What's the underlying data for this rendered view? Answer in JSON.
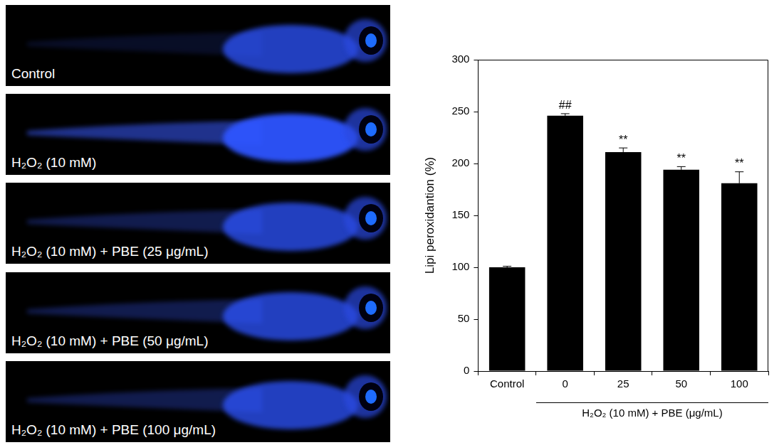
{
  "chart_data": {
    "type": "bar",
    "categories": [
      "Control",
      "0",
      "25",
      "50",
      "100"
    ],
    "values": [
      100,
      246,
      211,
      194,
      181
    ],
    "errors": [
      1,
      2,
      4,
      3,
      11
    ],
    "significance": [
      null,
      "##",
      "**",
      "**",
      "**"
    ],
    "color": "#000000",
    "y_label": "Lipi peroxidantion (%)",
    "x_group_label": "H₂O₂ (10 mM) + PBE (μg/mL)",
    "x_group_categories": [
      "0",
      "100"
    ],
    "ylim": [
      0,
      300
    ],
    "yticks": [
      0,
      50,
      100,
      150,
      200,
      250,
      300
    ],
    "grid": false
  },
  "panels": [
    {
      "label": "Control"
    },
    {
      "label": "H₂O₂ (10 mM)"
    },
    {
      "label": "H₂O₂ (10 mM) + PBE (25 μg/mL)"
    },
    {
      "label": "H₂O₂ (10 mM) + PBE (50 μg/mL)"
    },
    {
      "label": "H₂O₂ (10 mM) + PBE (100 μg/mL)"
    }
  ]
}
